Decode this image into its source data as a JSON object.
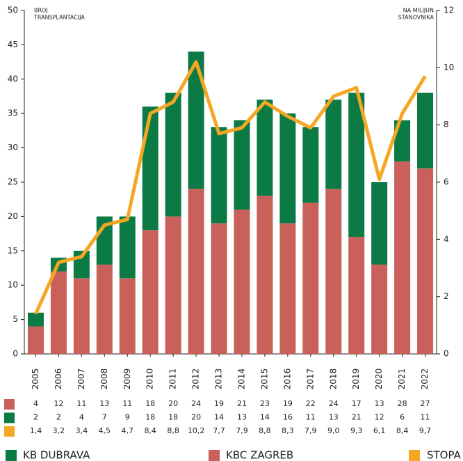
{
  "chart_data": {
    "type": "bar",
    "y_label": [
      "BROJ",
      "TRANSPLANTACIJA"
    ],
    "y2_label": [
      "NA MILIJUN",
      "STANOVNIKA"
    ],
    "categories": [
      "2005",
      "2006",
      "2007",
      "2008",
      "2009",
      "2010",
      "2011",
      "2012",
      "2013",
      "2014",
      "2015",
      "2016",
      "2017",
      "2018",
      "2019",
      "2020",
      "2021",
      "2022"
    ],
    "series": [
      {
        "name": "KB DUBRAVA",
        "color": "#0b7a45",
        "values": [
          2,
          2,
          4,
          7,
          9,
          18,
          18,
          20,
          14,
          13,
          14,
          16,
          11,
          13,
          21,
          12,
          6,
          11
        ]
      },
      {
        "name": "KBC ZAGREB",
        "color": "#c9605a",
        "values": [
          4,
          12,
          11,
          13,
          11,
          18,
          20,
          24,
          19,
          21,
          23,
          19,
          22,
          24,
          17,
          13,
          28,
          27
        ]
      },
      {
        "name": "STOPA",
        "color": "#f5a623",
        "axis": "y2",
        "type": "line",
        "values": [
          1.4,
          3.2,
          3.4,
          4.5,
          4.7,
          8.4,
          8.8,
          10.2,
          7.7,
          7.9,
          8.8,
          8.3,
          7.9,
          9.0,
          9.3,
          6.1,
          8.4,
          9.7
        ],
        "value_labels": [
          "1,4",
          "3,2",
          "3,4",
          "4,5",
          "4,7",
          "8,4",
          "8,8",
          "10,2",
          "7,7",
          "7,9",
          "8,8",
          "8,3",
          "7,9",
          "9,0",
          "9,3",
          "6,1",
          "8,4",
          "9,7"
        ]
      }
    ],
    "ylim": [
      0,
      50
    ],
    "yticks": [
      0,
      5,
      10,
      15,
      20,
      25,
      30,
      35,
      40,
      45,
      50
    ],
    "y2lim": [
      0,
      12
    ],
    "y2ticks": [
      0,
      2,
      4,
      6,
      8,
      10,
      12
    ]
  }
}
